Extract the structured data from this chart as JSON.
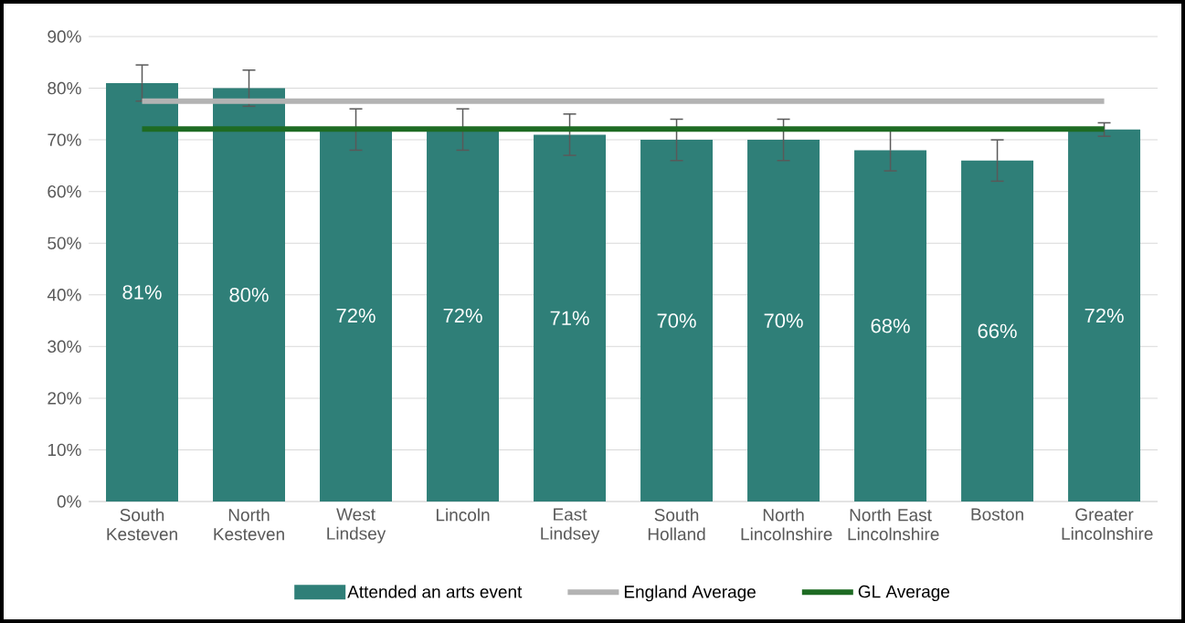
{
  "chart_data": {
    "type": "bar",
    "categories": [
      "South Kesteven",
      "North Kesteven",
      "West Lindsey",
      "Lincoln",
      "East Lindsey",
      "South Holland",
      "North Lincolnshire",
      "North East Lincolnshire",
      "Boston",
      "Greater Lincolnshire"
    ],
    "series": [
      {
        "name": "Attended an arts event",
        "color": "#2f7f78",
        "values": [
          81,
          80,
          72,
          72,
          71,
          70,
          70,
          68,
          66,
          72
        ],
        "errors": [
          3.5,
          3.5,
          4,
          4,
          4,
          4,
          4,
          4,
          4,
          1.3
        ],
        "value_labels": [
          "81%",
          "80%",
          "72%",
          "72%",
          "71%",
          "70%",
          "70%",
          "68%",
          "66%",
          "72%"
        ]
      },
      {
        "name": "England Average",
        "type": "line",
        "color": "#b3b3b3",
        "values": [
          77.5,
          77.5,
          77.5,
          77.5,
          77.5,
          77.5,
          77.5,
          77.5,
          77.5,
          77.5
        ]
      },
      {
        "name": "GL Average",
        "type": "line",
        "color": "#1e6b23",
        "values": [
          72.1,
          72.1,
          72.1,
          72.1,
          72.1,
          72.1,
          72.1,
          72.1,
          72.1,
          72.1
        ]
      }
    ],
    "ylim": [
      0,
      90
    ],
    "yticks": [
      {
        "value": 0,
        "label": "0%"
      },
      {
        "value": 10,
        "label": "10%"
      },
      {
        "value": 20,
        "label": "20%"
      },
      {
        "value": 30,
        "label": "30%"
      },
      {
        "value": 40,
        "label": "40%"
      },
      {
        "value": 50,
        "label": "50%"
      },
      {
        "value": 60,
        "label": "60%"
      },
      {
        "value": 70,
        "label": "70%"
      },
      {
        "value": 80,
        "label": "80%"
      },
      {
        "value": 90,
        "label": "90%"
      }
    ],
    "grid": "y",
    "legend": "bottom",
    "marker": "none",
    "line_style": "solid"
  }
}
